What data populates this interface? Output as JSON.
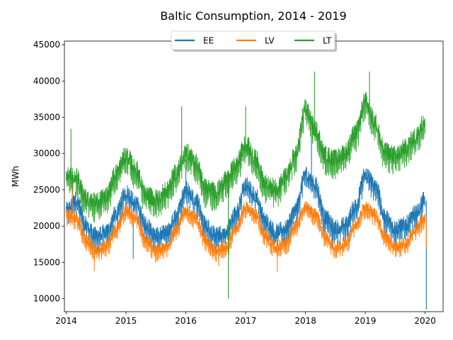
{
  "chart_data": {
    "type": "line",
    "title": "Baltic Consumption,  2014 - 2019",
    "xlabel": "",
    "ylabel": "MWh",
    "xlim": [
      2013.97,
      2020.3
    ],
    "ylim": [
      8200,
      45500
    ],
    "x_ticks": [
      2014,
      2015,
      2016,
      2017,
      2018,
      2019,
      2020
    ],
    "y_ticks": [
      10000,
      15000,
      20000,
      25000,
      30000,
      35000,
      40000,
      45000
    ],
    "legend": {
      "placement": "top-center",
      "shadow": true
    },
    "grid": false,
    "x": [
      2014.0,
      2014.17,
      2014.33,
      2014.5,
      2014.67,
      2014.83,
      2015.0,
      2015.17,
      2015.33,
      2015.5,
      2015.67,
      2015.83,
      2016.0,
      2016.17,
      2016.33,
      2016.5,
      2016.67,
      2016.83,
      2017.0,
      2017.17,
      2017.33,
      2017.5,
      2017.67,
      2017.83,
      2018.0,
      2018.17,
      2018.33,
      2018.5,
      2018.67,
      2018.83,
      2019.0,
      2019.17,
      2019.33,
      2019.5,
      2019.67,
      2019.83,
      2020.0
    ],
    "series": [
      {
        "name": "EE",
        "color": "#1f77b4",
        "values": [
          22000,
          23500,
          20000,
          18500,
          19000,
          21500,
          24500,
          23000,
          20000,
          18500,
          18800,
          21000,
          25000,
          23500,
          20000,
          18500,
          19000,
          21500,
          25500,
          24000,
          20500,
          19000,
          19500,
          22000,
          27000,
          25500,
          21000,
          19500,
          20000,
          22500,
          27000,
          25500,
          21000,
          19500,
          20000,
          21500,
          23500
        ],
        "spikes": [
          {
            "x": 2015.12,
            "y": 15500
          },
          {
            "x": 2016.0,
            "y": 29200
          },
          {
            "x": 2018.1,
            "y": 33000
          },
          {
            "x": 2018.45,
            "y": 17500
          },
          {
            "x": 2020.02,
            "y": 8500
          }
        ]
      },
      {
        "name": "LV",
        "color": "#ff7f0e",
        "values": [
          21500,
          21000,
          18000,
          16500,
          17000,
          19500,
          22000,
          21000,
          18000,
          16500,
          17000,
          19500,
          22000,
          21000,
          18000,
          16500,
          17000,
          19500,
          22500,
          21500,
          18500,
          17000,
          17500,
          20000,
          22500,
          21500,
          18500,
          17000,
          17500,
          20000,
          22500,
          21500,
          18500,
          17000,
          17500,
          19500,
          21000
        ],
        "spikes": [
          {
            "x": 2014.1,
            "y": 26500
          },
          {
            "x": 2014.47,
            "y": 13800
          },
          {
            "x": 2016.55,
            "y": 14500
          },
          {
            "x": 2017.53,
            "y": 13700
          },
          {
            "x": 2020.02,
            "y": 17000
          }
        ]
      },
      {
        "name": "LT",
        "color": "#2ca02c",
        "values": [
          27000,
          26500,
          23500,
          23000,
          24000,
          27000,
          29500,
          27500,
          24000,
          23500,
          24500,
          27000,
          30000,
          28500,
          25000,
          24500,
          26000,
          28000,
          31000,
          29000,
          25500,
          25000,
          26500,
          29500,
          36000,
          33000,
          29500,
          29000,
          30000,
          32500,
          37000,
          34000,
          30000,
          29500,
          30500,
          32000,
          34500
        ],
        "spikes": [
          {
            "x": 2014.08,
            "y": 33400
          },
          {
            "x": 2015.93,
            "y": 36500
          },
          {
            "x": 2016.71,
            "y": 10000
          },
          {
            "x": 2017.0,
            "y": 36500
          },
          {
            "x": 2018.15,
            "y": 41300
          },
          {
            "x": 2019.07,
            "y": 41300
          }
        ]
      }
    ]
  }
}
